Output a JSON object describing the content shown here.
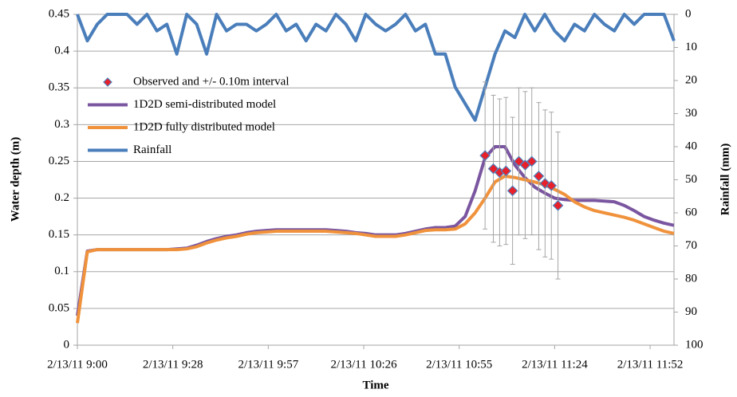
{
  "chart_data": {
    "type": "line",
    "x_label": "Time",
    "y_label": "Water depth (m)",
    "y2_label": "Rainfall (mm)",
    "xlim": [
      0,
      180
    ],
    "xticks": [
      {
        "value": 0,
        "label": "2/13/11 9:00"
      },
      {
        "value": 28.8,
        "label": "2/13/11 9:28"
      },
      {
        "value": 57.6,
        "label": "2/13/11 9:57"
      },
      {
        "value": 86.4,
        "label": "2/13/11 10:26"
      },
      {
        "value": 115.2,
        "label": "2/13/11 10:55"
      },
      {
        "value": 144,
        "label": "2/13/11 11:24"
      },
      {
        "value": 172.8,
        "label": "2/13/11 11:52"
      }
    ],
    "ylim": [
      0,
      0.45
    ],
    "yticks": [
      0,
      0.05,
      0.1,
      0.15,
      0.2,
      0.25,
      0.3,
      0.35,
      0.4,
      0.45
    ],
    "y2lim": [
      0,
      100
    ],
    "y2ticks": [
      0,
      10,
      20,
      30,
      40,
      50,
      60,
      70,
      80,
      90,
      100
    ],
    "y2_reversed": true,
    "grid": true,
    "x": [
      0,
      3,
      6,
      9,
      12,
      15,
      18,
      21,
      24,
      27,
      30,
      33,
      36,
      39,
      42,
      45,
      48,
      51,
      54,
      57,
      60,
      63,
      66,
      69,
      72,
      75,
      78,
      81,
      84,
      87,
      90,
      93,
      96,
      99,
      102,
      105,
      108,
      111,
      114,
      117,
      120,
      123,
      126,
      129,
      132,
      135,
      138,
      141,
      144,
      147,
      150,
      153,
      156,
      159,
      162,
      165,
      168,
      171,
      174,
      177,
      180
    ],
    "series": [
      {
        "name": "Observed and +/- 0.10m interval",
        "type": "scatter",
        "color": "#e8202a",
        "edge_color": "#4f81bd",
        "x": [
          123,
          125.5,
          127.4,
          129.3,
          131.3,
          133.2,
          135.1,
          137.1,
          139.2,
          141.1,
          143,
          145
        ],
        "values": [
          0.258,
          0.24,
          0.235,
          0.237,
          0.21,
          0.25,
          0.245,
          0.25,
          0.23,
          0.22,
          0.217,
          0.19
        ],
        "errors": [
          0.1,
          0.1,
          0.1,
          0.1,
          0.1,
          0.1,
          0.1,
          0.1,
          0.1,
          0.1,
          0.1,
          0.1
        ]
      },
      {
        "name": "1D2D semi-distributed model",
        "color": "#7b56a0",
        "values": [
          0.04,
          0.128,
          0.13,
          0.13,
          0.13,
          0.13,
          0.13,
          0.13,
          0.13,
          0.13,
          0.131,
          0.132,
          0.136,
          0.141,
          0.145,
          0.148,
          0.15,
          0.153,
          0.155,
          0.156,
          0.157,
          0.157,
          0.157,
          0.157,
          0.157,
          0.157,
          0.156,
          0.155,
          0.153,
          0.152,
          0.15,
          0.15,
          0.15,
          0.152,
          0.155,
          0.158,
          0.16,
          0.16,
          0.162,
          0.175,
          0.21,
          0.255,
          0.27,
          0.27,
          0.245,
          0.228,
          0.215,
          0.207,
          0.2,
          0.198,
          0.197,
          0.197,
          0.197,
          0.196,
          0.195,
          0.19,
          0.183,
          0.175,
          0.17,
          0.166,
          0.163
        ]
      },
      {
        "name": "1D2D fully distributed model",
        "color": "#f0923c",
        "values": [
          0.03,
          0.127,
          0.13,
          0.13,
          0.13,
          0.13,
          0.13,
          0.13,
          0.13,
          0.13,
          0.13,
          0.131,
          0.134,
          0.139,
          0.143,
          0.146,
          0.148,
          0.151,
          0.153,
          0.154,
          0.155,
          0.155,
          0.155,
          0.155,
          0.155,
          0.155,
          0.154,
          0.153,
          0.152,
          0.15,
          0.148,
          0.148,
          0.148,
          0.15,
          0.153,
          0.156,
          0.157,
          0.157,
          0.158,
          0.165,
          0.18,
          0.2,
          0.222,
          0.23,
          0.228,
          0.225,
          0.222,
          0.218,
          0.212,
          0.205,
          0.195,
          0.188,
          0.183,
          0.18,
          0.177,
          0.174,
          0.17,
          0.165,
          0.16,
          0.155,
          0.152
        ]
      },
      {
        "name": "Rainfall",
        "color": "#4a7ebb",
        "axis": "y2",
        "values": [
          0,
          8,
          3,
          0,
          0,
          0,
          3,
          0,
          5,
          3,
          12,
          0,
          3,
          12,
          0,
          5,
          3,
          3,
          5,
          3,
          0,
          5,
          3,
          8,
          3,
          5,
          0,
          3,
          8,
          0,
          3,
          5,
          3,
          0,
          5,
          3,
          12,
          12,
          22,
          27,
          32,
          22,
          12,
          5,
          7,
          0,
          5,
          0,
          5,
          8,
          3,
          5,
          0,
          3,
          5,
          0,
          3,
          0,
          0,
          0,
          8
        ]
      }
    ]
  }
}
